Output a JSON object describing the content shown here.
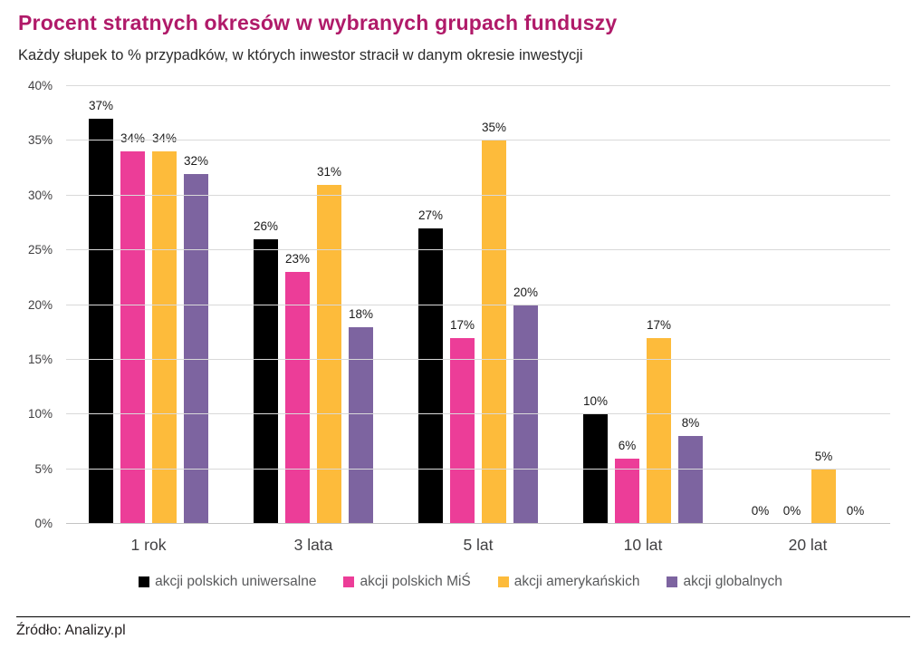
{
  "header": {
    "title": "Procent stratnych okresów w wybranych grupach funduszy",
    "subtitle": "Każdy słupek to % przypadków, w których inwestor stracił w danym okresie inwestycji"
  },
  "chart_data": {
    "type": "bar",
    "title": "Procent stratnych okresów w wybranych grupach funduszy",
    "subtitle": "Każdy słupek to % przypadków, w których inwestor stracił w danym okresie inwestycji",
    "categories": [
      "1 rok",
      "3 lata",
      "5 lat",
      "10 lat",
      "20 lat"
    ],
    "series": [
      {
        "name": "akcji polskich uniwersalne",
        "color": "#000000",
        "values": [
          37,
          26,
          27,
          10,
          0
        ]
      },
      {
        "name": "akcji polskich MiŚ",
        "color": "#ec3d98",
        "values": [
          34,
          23,
          17,
          6,
          0
        ]
      },
      {
        "name": "akcji amerykańskich",
        "color": "#fdbb3b",
        "values": [
          34,
          31,
          35,
          17,
          5
        ]
      },
      {
        "name": "akcji globalnych",
        "color": "#7d64a0",
        "values": [
          32,
          18,
          20,
          8,
          0
        ]
      }
    ],
    "xlabel": "",
    "ylabel": "",
    "ylim": [
      0,
      40
    ],
    "ytick_step": 5,
    "ytick_suffix": "%",
    "data_label_suffix": "%",
    "grid": true,
    "legend_position": "bottom"
  },
  "footer": {
    "source": "Źródło: Analizy.pl"
  },
  "colors": {
    "title": "#b01a69",
    "gridline": "#d9d9d9",
    "axis_text": "#414042",
    "legend_text": "#595a5c",
    "data_label": "#1a1a1a"
  }
}
